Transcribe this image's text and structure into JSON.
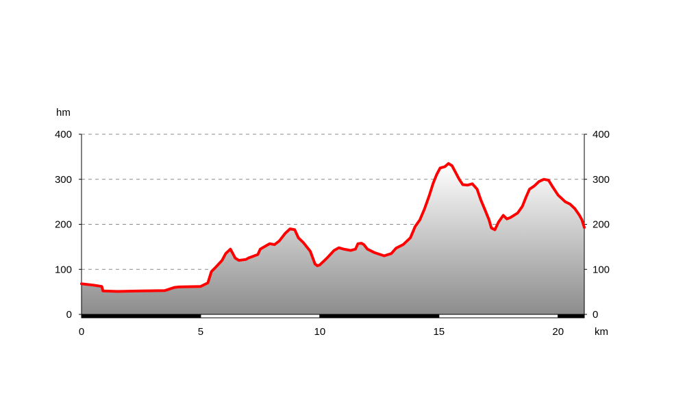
{
  "chart_data": {
    "type": "area",
    "title": "",
    "xlabel": "km",
    "ylabel": "hm",
    "xlim": [
      0,
      21.1
    ],
    "ylim": [
      0,
      400
    ],
    "x_ticks": [
      "0",
      "5",
      "10",
      "15",
      "20"
    ],
    "y_ticks": [
      "0",
      "100",
      "200",
      "300",
      "400"
    ],
    "grid": "horizontal-dashed",
    "colors": {
      "line": "#ff0000",
      "fill_top": "#ffffff",
      "fill_bottom": "#8c8c8c",
      "grid": "#888888",
      "axis": "#000000"
    },
    "series": [
      {
        "x": [
          0,
          0.5,
          0.85,
          0.9,
          1.5,
          2.5,
          3.5,
          3.9,
          4.1,
          5.0,
          5.3,
          5.45,
          5.6,
          5.9,
          6.05,
          6.25,
          6.35,
          6.45,
          6.6,
          6.9,
          7.0,
          7.4,
          7.5,
          7.9,
          8.1,
          8.3,
          8.55,
          8.75,
          8.95,
          9.1,
          9.3,
          9.6,
          9.8,
          9.9,
          10.0,
          10.3,
          10.6,
          10.8,
          11.0,
          11.3,
          11.5,
          11.6,
          11.75,
          11.85,
          12.0,
          12.3,
          12.7,
          13.0,
          13.2,
          13.5,
          13.8,
          14.0,
          14.2,
          14.4,
          14.6,
          14.75,
          14.9,
          15.05,
          15.25,
          15.4,
          15.55,
          15.7,
          15.85,
          16.0,
          16.2,
          16.4,
          16.6,
          16.75,
          16.95,
          17.1,
          17.2,
          17.35,
          17.5,
          17.7,
          17.85,
          18.0,
          18.3,
          18.5,
          18.65,
          18.8,
          19.0,
          19.2,
          19.4,
          19.6,
          19.75,
          20.0,
          20.3,
          20.5,
          20.7,
          20.9,
          21.0,
          21.1
        ],
        "y": [
          68,
          65,
          62,
          52,
          51,
          52,
          53,
          60,
          61,
          62,
          70,
          95,
          103,
          120,
          135,
          145,
          135,
          125,
          120,
          122,
          125,
          133,
          145,
          157,
          155,
          163,
          180,
          190,
          188,
          170,
          160,
          140,
          112,
          108,
          110,
          125,
          142,
          148,
          145,
          142,
          145,
          157,
          158,
          155,
          145,
          137,
          130,
          135,
          147,
          155,
          170,
          195,
          210,
          235,
          265,
          290,
          310,
          325,
          328,
          335,
          330,
          315,
          300,
          288,
          287,
          290,
          278,
          255,
          230,
          210,
          192,
          188,
          205,
          220,
          212,
          215,
          225,
          240,
          260,
          278,
          285,
          295,
          300,
          298,
          285,
          265,
          250,
          245,
          235,
          220,
          210,
          193
        ]
      }
    ]
  }
}
